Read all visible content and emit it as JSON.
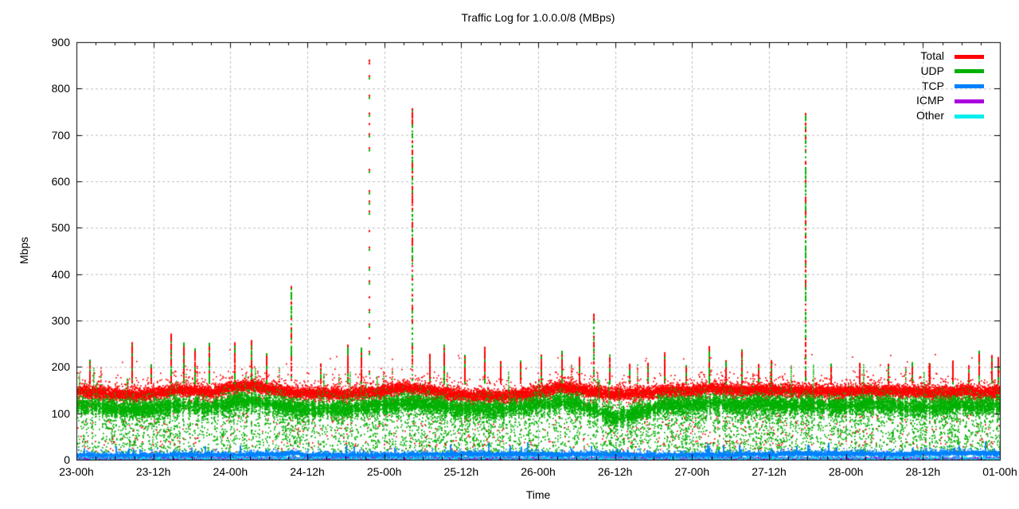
{
  "chart_data": {
    "type": "scatter",
    "title": "Traffic Log for 1.0.0.0/8 (MBps)",
    "xlabel": "Time",
    "ylabel": "Mbps",
    "ylim": [
      0,
      900
    ],
    "y_ticks": [
      "0",
      "100",
      "200",
      "300",
      "400",
      "500",
      "600",
      "700",
      "800",
      "900"
    ],
    "x_ticks": [
      "23-00h",
      "23-12h",
      "24-00h",
      "24-12h",
      "25-00h",
      "25-12h",
      "26-00h",
      "26-12h",
      "27-00h",
      "27-12h",
      "28-00h",
      "28-12h",
      "01-00h"
    ],
    "x_span_hours": 144,
    "x_minor_per_major": 4,
    "grid": true,
    "legend_position": "top-right",
    "series": [
      {
        "name": "Total",
        "color": "#ff0000",
        "style": "dots",
        "approx_band_mbps": "135-170 dense band, outliers to 860",
        "center_hours": [
          0,
          3,
          6,
          9,
          12,
          15,
          18,
          21,
          24,
          27,
          30,
          33,
          36,
          39,
          42,
          45,
          48,
          51,
          54,
          57,
          60,
          63,
          66,
          69,
          72,
          75,
          78,
          81,
          84,
          87,
          90,
          93,
          96,
          99,
          102,
          105,
          108,
          111,
          114,
          117,
          120,
          123,
          126,
          129,
          132,
          135,
          138,
          141,
          144
        ],
        "center_mbps": [
          150,
          147,
          143,
          142,
          144,
          152,
          150,
          148,
          156,
          162,
          152,
          145,
          141,
          139,
          141,
          144,
          151,
          157,
          154,
          147,
          142,
          139,
          137,
          141,
          147,
          154,
          151,
          146,
          141,
          142,
          144,
          146,
          149,
          155,
          150,
          146,
          145,
          146,
          147,
          146,
          147,
          149,
          146,
          145,
          145,
          144,
          145,
          146,
          147
        ],
        "sigma": 6
      },
      {
        "name": "UDP",
        "color": "#00b000",
        "style": "dots",
        "approx_band_mbps": "60-140 dense band, vertical streaks down to 0",
        "offset_hours": [
          0,
          24,
          48,
          72,
          78,
          81,
          84,
          87,
          90,
          96,
          120,
          144
        ],
        "offset_from_total_mbps": [
          -31,
          -33,
          -30,
          -28,
          -32,
          -40,
          -52,
          -40,
          -32,
          -30,
          -31,
          -30
        ],
        "sigma": 9
      },
      {
        "name": "TCP",
        "color": "#0080ff",
        "style": "dots",
        "approx_band_mbps": "3-20, narrow bursts to 35",
        "center_hours": [
          0,
          12,
          24,
          32,
          34,
          36,
          48,
          60,
          72,
          84,
          96,
          104,
          108,
          112,
          116,
          120,
          128,
          136,
          144
        ],
        "center_mbps": [
          9,
          9,
          10,
          11,
          15,
          10,
          10,
          11,
          12,
          11,
          10,
          11,
          12,
          14,
          13,
          14,
          13,
          14,
          13
        ],
        "sigma": 2.2
      },
      {
        "name": "ICMP",
        "color": "#aa00dd",
        "style": "dots",
        "approx_band_mbps": "0-5 thin line",
        "center_mbps": 2.4,
        "sigma": 1.1
      },
      {
        "name": "Other",
        "color": "#00eeee",
        "style": "dots",
        "approx_band_mbps": "0-9 sparse dots",
        "center_mbps": 2.6,
        "sigma": 2.0
      }
    ],
    "spikes": [
      {
        "hour": 2.0,
        "peak_mbps": 215,
        "kind": "burst"
      },
      {
        "hour": 8.6,
        "peak_mbps": 252,
        "kind": "burst"
      },
      {
        "hour": 11.5,
        "peak_mbps": 205,
        "kind": "burst"
      },
      {
        "hour": 14.6,
        "peak_mbps": 272,
        "kind": "burst"
      },
      {
        "hour": 16.6,
        "peak_mbps": 252,
        "kind": "burst"
      },
      {
        "hour": 18.4,
        "peak_mbps": 240,
        "kind": "burst"
      },
      {
        "hour": 20.6,
        "peak_mbps": 250,
        "kind": "burst"
      },
      {
        "hour": 24.6,
        "peak_mbps": 252,
        "kind": "burst"
      },
      {
        "hour": 27.2,
        "peak_mbps": 258,
        "kind": "burst"
      },
      {
        "hour": 29.5,
        "peak_mbps": 230,
        "kind": "burst"
      },
      {
        "hour": 33.4,
        "peak_mbps": 372,
        "kind": "tall"
      },
      {
        "hour": 38.0,
        "peak_mbps": 205,
        "kind": "burst"
      },
      {
        "hour": 42.2,
        "peak_mbps": 248,
        "kind": "burst"
      },
      {
        "hour": 44.3,
        "peak_mbps": 242,
        "kind": "burst"
      },
      {
        "hour": 45.6,
        "peak_mbps": 860,
        "kind": "sparse"
      },
      {
        "hour": 52.3,
        "peak_mbps": 755,
        "kind": "tall"
      },
      {
        "hour": 55.0,
        "peak_mbps": 230,
        "kind": "burst"
      },
      {
        "hour": 57.2,
        "peak_mbps": 248,
        "kind": "burst"
      },
      {
        "hour": 60.5,
        "peak_mbps": 225,
        "kind": "burst"
      },
      {
        "hour": 63.6,
        "peak_mbps": 242,
        "kind": "burst"
      },
      {
        "hour": 66.0,
        "peak_mbps": 210,
        "kind": "burst"
      },
      {
        "hour": 69.2,
        "peak_mbps": 216,
        "kind": "burst"
      },
      {
        "hour": 72.4,
        "peak_mbps": 228,
        "kind": "burst"
      },
      {
        "hour": 75.6,
        "peak_mbps": 232,
        "kind": "burst"
      },
      {
        "hour": 78.3,
        "peak_mbps": 220,
        "kind": "burst"
      },
      {
        "hour": 80.6,
        "peak_mbps": 312,
        "kind": "tall"
      },
      {
        "hour": 83.0,
        "peak_mbps": 226,
        "kind": "burst"
      },
      {
        "hour": 86.1,
        "peak_mbps": 206,
        "kind": "burst"
      },
      {
        "hour": 89.0,
        "peak_mbps": 210,
        "kind": "burst"
      },
      {
        "hour": 91.6,
        "peak_mbps": 230,
        "kind": "burst"
      },
      {
        "hour": 95.0,
        "peak_mbps": 205,
        "kind": "burst"
      },
      {
        "hour": 98.6,
        "peak_mbps": 242,
        "kind": "burst"
      },
      {
        "hour": 101.2,
        "peak_mbps": 215,
        "kind": "burst"
      },
      {
        "hour": 103.6,
        "peak_mbps": 238,
        "kind": "burst"
      },
      {
        "hour": 106.3,
        "peak_mbps": 205,
        "kind": "burst"
      },
      {
        "hour": 108.2,
        "peak_mbps": 212,
        "kind": "burst"
      },
      {
        "hour": 113.6,
        "peak_mbps": 745,
        "kind": "tall"
      },
      {
        "hour": 117.5,
        "peak_mbps": 205,
        "kind": "burst"
      },
      {
        "hour": 122.0,
        "peak_mbps": 208,
        "kind": "burst"
      },
      {
        "hour": 126.5,
        "peak_mbps": 205,
        "kind": "burst"
      },
      {
        "hour": 130.2,
        "peak_mbps": 214,
        "kind": "burst"
      },
      {
        "hour": 133.0,
        "peak_mbps": 205,
        "kind": "burst"
      },
      {
        "hour": 136.6,
        "peak_mbps": 214,
        "kind": "burst"
      },
      {
        "hour": 139.0,
        "peak_mbps": 205,
        "kind": "burst"
      },
      {
        "hour": 140.6,
        "peak_mbps": 234,
        "kind": "burst"
      },
      {
        "hour": 142.6,
        "peak_mbps": 222,
        "kind": "burst"
      },
      {
        "hour": 143.6,
        "peak_mbps": 220,
        "kind": "burst"
      }
    ]
  }
}
